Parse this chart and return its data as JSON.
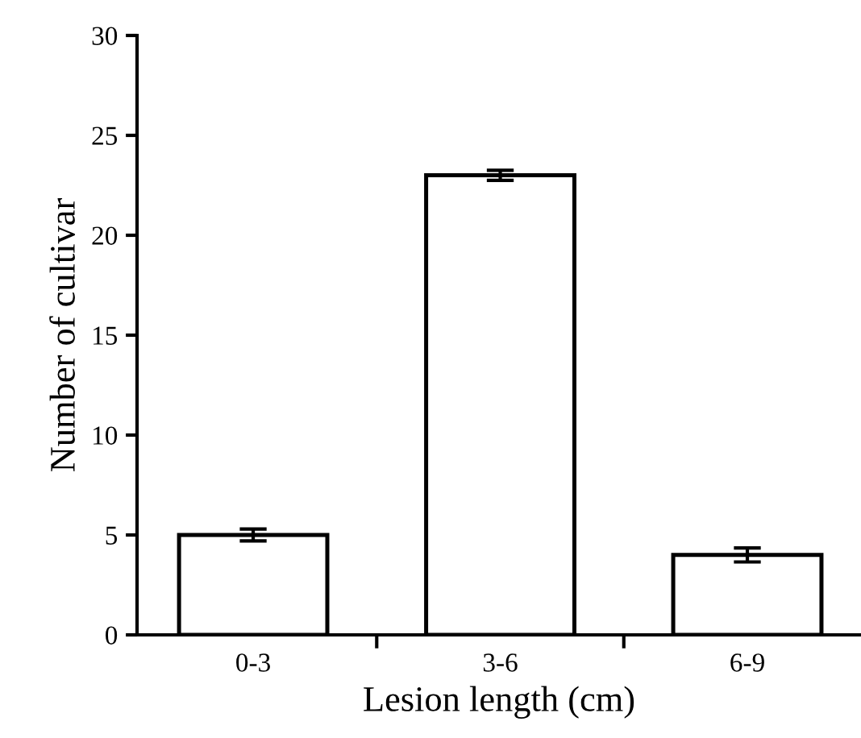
{
  "chart_data": {
    "type": "bar",
    "xlabel": "Lesion length (cm)",
    "ylabel": "Number of cultivar",
    "categories": [
      "0-3",
      "3-6",
      "6-9"
    ],
    "series": [
      {
        "color": "#ffffff",
        "values": [
          5,
          23,
          4
        ],
        "errors": [
          0.3,
          0.25,
          0.35
        ]
      }
    ],
    "ylim": [
      0,
      30
    ],
    "yticks": [
      0,
      5,
      10,
      15,
      20,
      25,
      30
    ],
    "grid": false,
    "legend": false
  }
}
